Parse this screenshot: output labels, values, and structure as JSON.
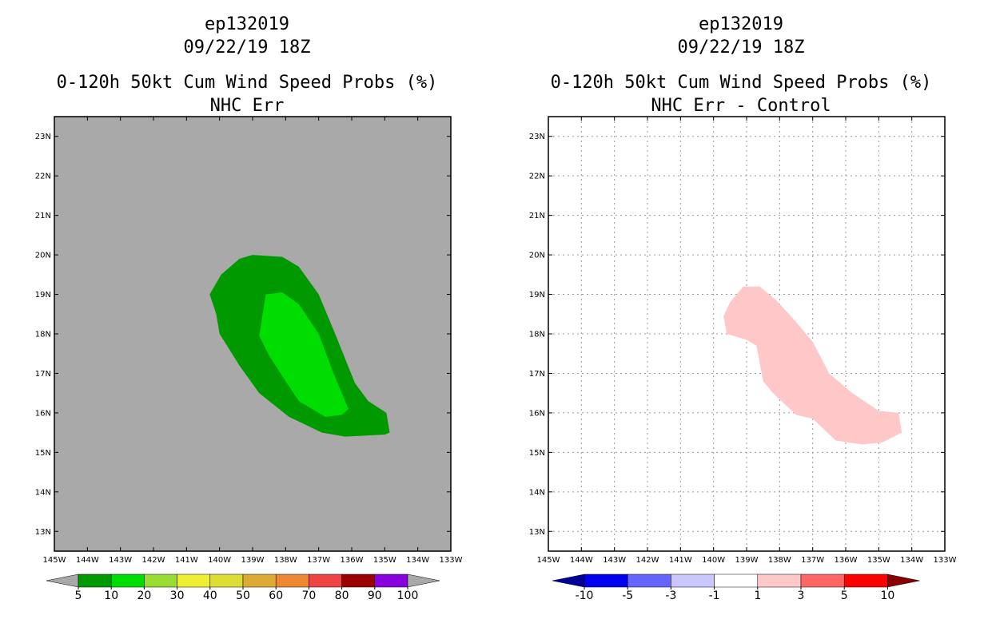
{
  "chart_data": [
    {
      "type": "filled-contour-map",
      "title_lines": [
        "ep132019",
        "09/22/19 18Z",
        "0-120h 50kt Cum Wind Speed Probs (%)",
        "NHC Err"
      ],
      "xlabels": [
        "145W",
        "144W",
        "143W",
        "142W",
        "141W",
        "140W",
        "139W",
        "138W",
        "137W",
        "136W",
        "135W",
        "134W",
        "133W"
      ],
      "ylabels": [
        "13N",
        "14N",
        "15N",
        "16N",
        "17N",
        "18N",
        "19N",
        "20N",
        "21N",
        "22N",
        "23N"
      ],
      "xlim_lon_east": [
        -145,
        -133
      ],
      "ylim_lat": [
        12.5,
        23.5
      ],
      "background": "#a9a9a9",
      "grid": false,
      "contours": [
        {
          "level": "5-10",
          "color": "#009900",
          "lonlat": [
            [
              -139.95,
              19.5
            ],
            [
              -139.4,
              19.9
            ],
            [
              -139.0,
              20.0
            ],
            [
              -138.1,
              19.95
            ],
            [
              -137.6,
              19.7
            ],
            [
              -137.0,
              19.0
            ],
            [
              -136.5,
              18.0
            ],
            [
              -135.9,
              16.75
            ],
            [
              -135.5,
              16.3
            ],
            [
              -134.95,
              16.0
            ],
            [
              -134.85,
              15.5
            ],
            [
              -135.0,
              15.45
            ],
            [
              -136.2,
              15.4
            ],
            [
              -136.9,
              15.5
            ],
            [
              -137.9,
              15.9
            ],
            [
              -138.8,
              16.5
            ],
            [
              -139.4,
              17.2
            ],
            [
              -139.7,
              17.6
            ],
            [
              -140.0,
              18.0
            ],
            [
              -140.1,
              18.5
            ],
            [
              -140.3,
              19.0
            ],
            [
              -139.95,
              19.5
            ]
          ]
        },
        {
          "level": "10-20",
          "color": "#00dd00",
          "lonlat": [
            [
              -138.6,
              19.0
            ],
            [
              -138.1,
              19.05
            ],
            [
              -137.6,
              18.75
            ],
            [
              -137.0,
              18.0
            ],
            [
              -136.55,
              17.0
            ],
            [
              -136.1,
              16.1
            ],
            [
              -136.3,
              15.95
            ],
            [
              -136.8,
              15.9
            ],
            [
              -137.6,
              16.3
            ],
            [
              -138.0,
              16.8
            ],
            [
              -138.5,
              17.45
            ],
            [
              -138.8,
              17.95
            ],
            [
              -138.6,
              19.0
            ]
          ]
        }
      ],
      "colorbar": {
        "labels": [
          "5",
          "10",
          "20",
          "30",
          "40",
          "50",
          "60",
          "70",
          "80",
          "90",
          "100"
        ],
        "colors": [
          "#009900",
          "#00dd00",
          "#99dd33",
          "#eeee33",
          "#dddd33",
          "#ddaa33",
          "#ee8833",
          "#ee4444",
          "#990000",
          "#8800dd"
        ],
        "under_color": "#a9a9a9",
        "over_color": "#a9a9a9"
      }
    },
    {
      "type": "filled-contour-map",
      "title_lines": [
        "ep132019",
        "09/22/19 18Z",
        "0-120h 50kt Cum Wind Speed Probs (%)",
        "NHC Err - Control"
      ],
      "xlabels": [
        "145W",
        "144W",
        "143W",
        "142W",
        "141W",
        "140W",
        "139W",
        "138W",
        "137W",
        "136W",
        "135W",
        "134W",
        "133W"
      ],
      "ylabels": [
        "13N",
        "14N",
        "15N",
        "16N",
        "17N",
        "18N",
        "19N",
        "20N",
        "21N",
        "22N",
        "23N"
      ],
      "xlim_lon_east": [
        -145,
        -133
      ],
      "ylim_lat": [
        12.5,
        23.5
      ],
      "background": "#ffffff",
      "grid": true,
      "contours": [
        {
          "level": "1-3",
          "color": "#ffc8c8",
          "lonlat": [
            [
              -139.5,
              18.8
            ],
            [
              -139.1,
              19.2
            ],
            [
              -138.6,
              19.2
            ],
            [
              -138.1,
              18.85
            ],
            [
              -137.5,
              18.3
            ],
            [
              -137.0,
              17.8
            ],
            [
              -136.5,
              17.0
            ],
            [
              -135.8,
              16.5
            ],
            [
              -135.0,
              16.05
            ],
            [
              -134.4,
              16.0
            ],
            [
              -134.3,
              15.5
            ],
            [
              -134.9,
              15.25
            ],
            [
              -135.5,
              15.2
            ],
            [
              -136.3,
              15.3
            ],
            [
              -137.0,
              15.85
            ],
            [
              -137.5,
              15.95
            ],
            [
              -138.2,
              16.5
            ],
            [
              -138.5,
              16.8
            ],
            [
              -138.7,
              17.7
            ],
            [
              -139.0,
              17.85
            ],
            [
              -139.6,
              18.0
            ],
            [
              -139.7,
              18.45
            ],
            [
              -139.5,
              18.8
            ]
          ]
        }
      ],
      "colorbar": {
        "labels": [
          "-10",
          "-5",
          "-3",
          "-1",
          "1",
          "3",
          "5",
          "10"
        ],
        "colors": [
          "#0000ee",
          "#6666ff",
          "#c8c8ff",
          "#ffffff",
          "#ffc8c8",
          "#ff6666",
          "#ff0000"
        ],
        "under_color": "#000099",
        "over_color": "#880000"
      }
    }
  ]
}
